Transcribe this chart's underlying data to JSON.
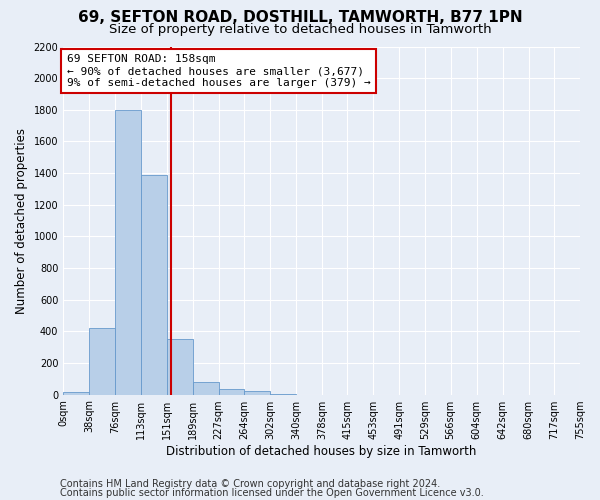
{
  "title": "69, SEFTON ROAD, DOSTHILL, TAMWORTH, B77 1PN",
  "subtitle": "Size of property relative to detached houses in Tamworth",
  "xlabel": "Distribution of detached houses by size in Tamworth",
  "ylabel": "Number of detached properties",
  "bar_edges": [
    0,
    38,
    76,
    113,
    151,
    189,
    227,
    264,
    302,
    340,
    378,
    415,
    453,
    491,
    529,
    566,
    604,
    642,
    680,
    717,
    755
  ],
  "bar_heights": [
    15,
    420,
    1800,
    1390,
    350,
    80,
    35,
    20,
    5,
    0,
    0,
    0,
    0,
    0,
    0,
    0,
    0,
    0,
    0,
    0
  ],
  "bar_color": "#b8cfe8",
  "bar_edgecolor": "#6699cc",
  "property_line_x": 158,
  "annotation_title": "69 SEFTON ROAD: 158sqm",
  "annotation_line1": "← 90% of detached houses are smaller (3,677)",
  "annotation_line2": "9% of semi-detached houses are larger (379) →",
  "annotation_box_color": "#cc0000",
  "ylim": [
    0,
    2200
  ],
  "yticks": [
    0,
    200,
    400,
    600,
    800,
    1000,
    1200,
    1400,
    1600,
    1800,
    2000,
    2200
  ],
  "tick_labels": [
    "0sqm",
    "38sqm",
    "76sqm",
    "113sqm",
    "151sqm",
    "189sqm",
    "227sqm",
    "264sqm",
    "302sqm",
    "340sqm",
    "378sqm",
    "415sqm",
    "453sqm",
    "491sqm",
    "529sqm",
    "566sqm",
    "604sqm",
    "642sqm",
    "680sqm",
    "717sqm",
    "755sqm"
  ],
  "footnote1": "Contains HM Land Registry data © Crown copyright and database right 2024.",
  "footnote2": "Contains public sector information licensed under the Open Government Licence v3.0.",
  "bg_color": "#e8eef7",
  "plot_bg_color": "#e8eef7",
  "grid_color": "#ffffff",
  "title_fontsize": 11,
  "subtitle_fontsize": 9.5,
  "axis_label_fontsize": 8.5,
  "tick_fontsize": 7,
  "annotation_fontsize": 8,
  "footnote_fontsize": 7
}
